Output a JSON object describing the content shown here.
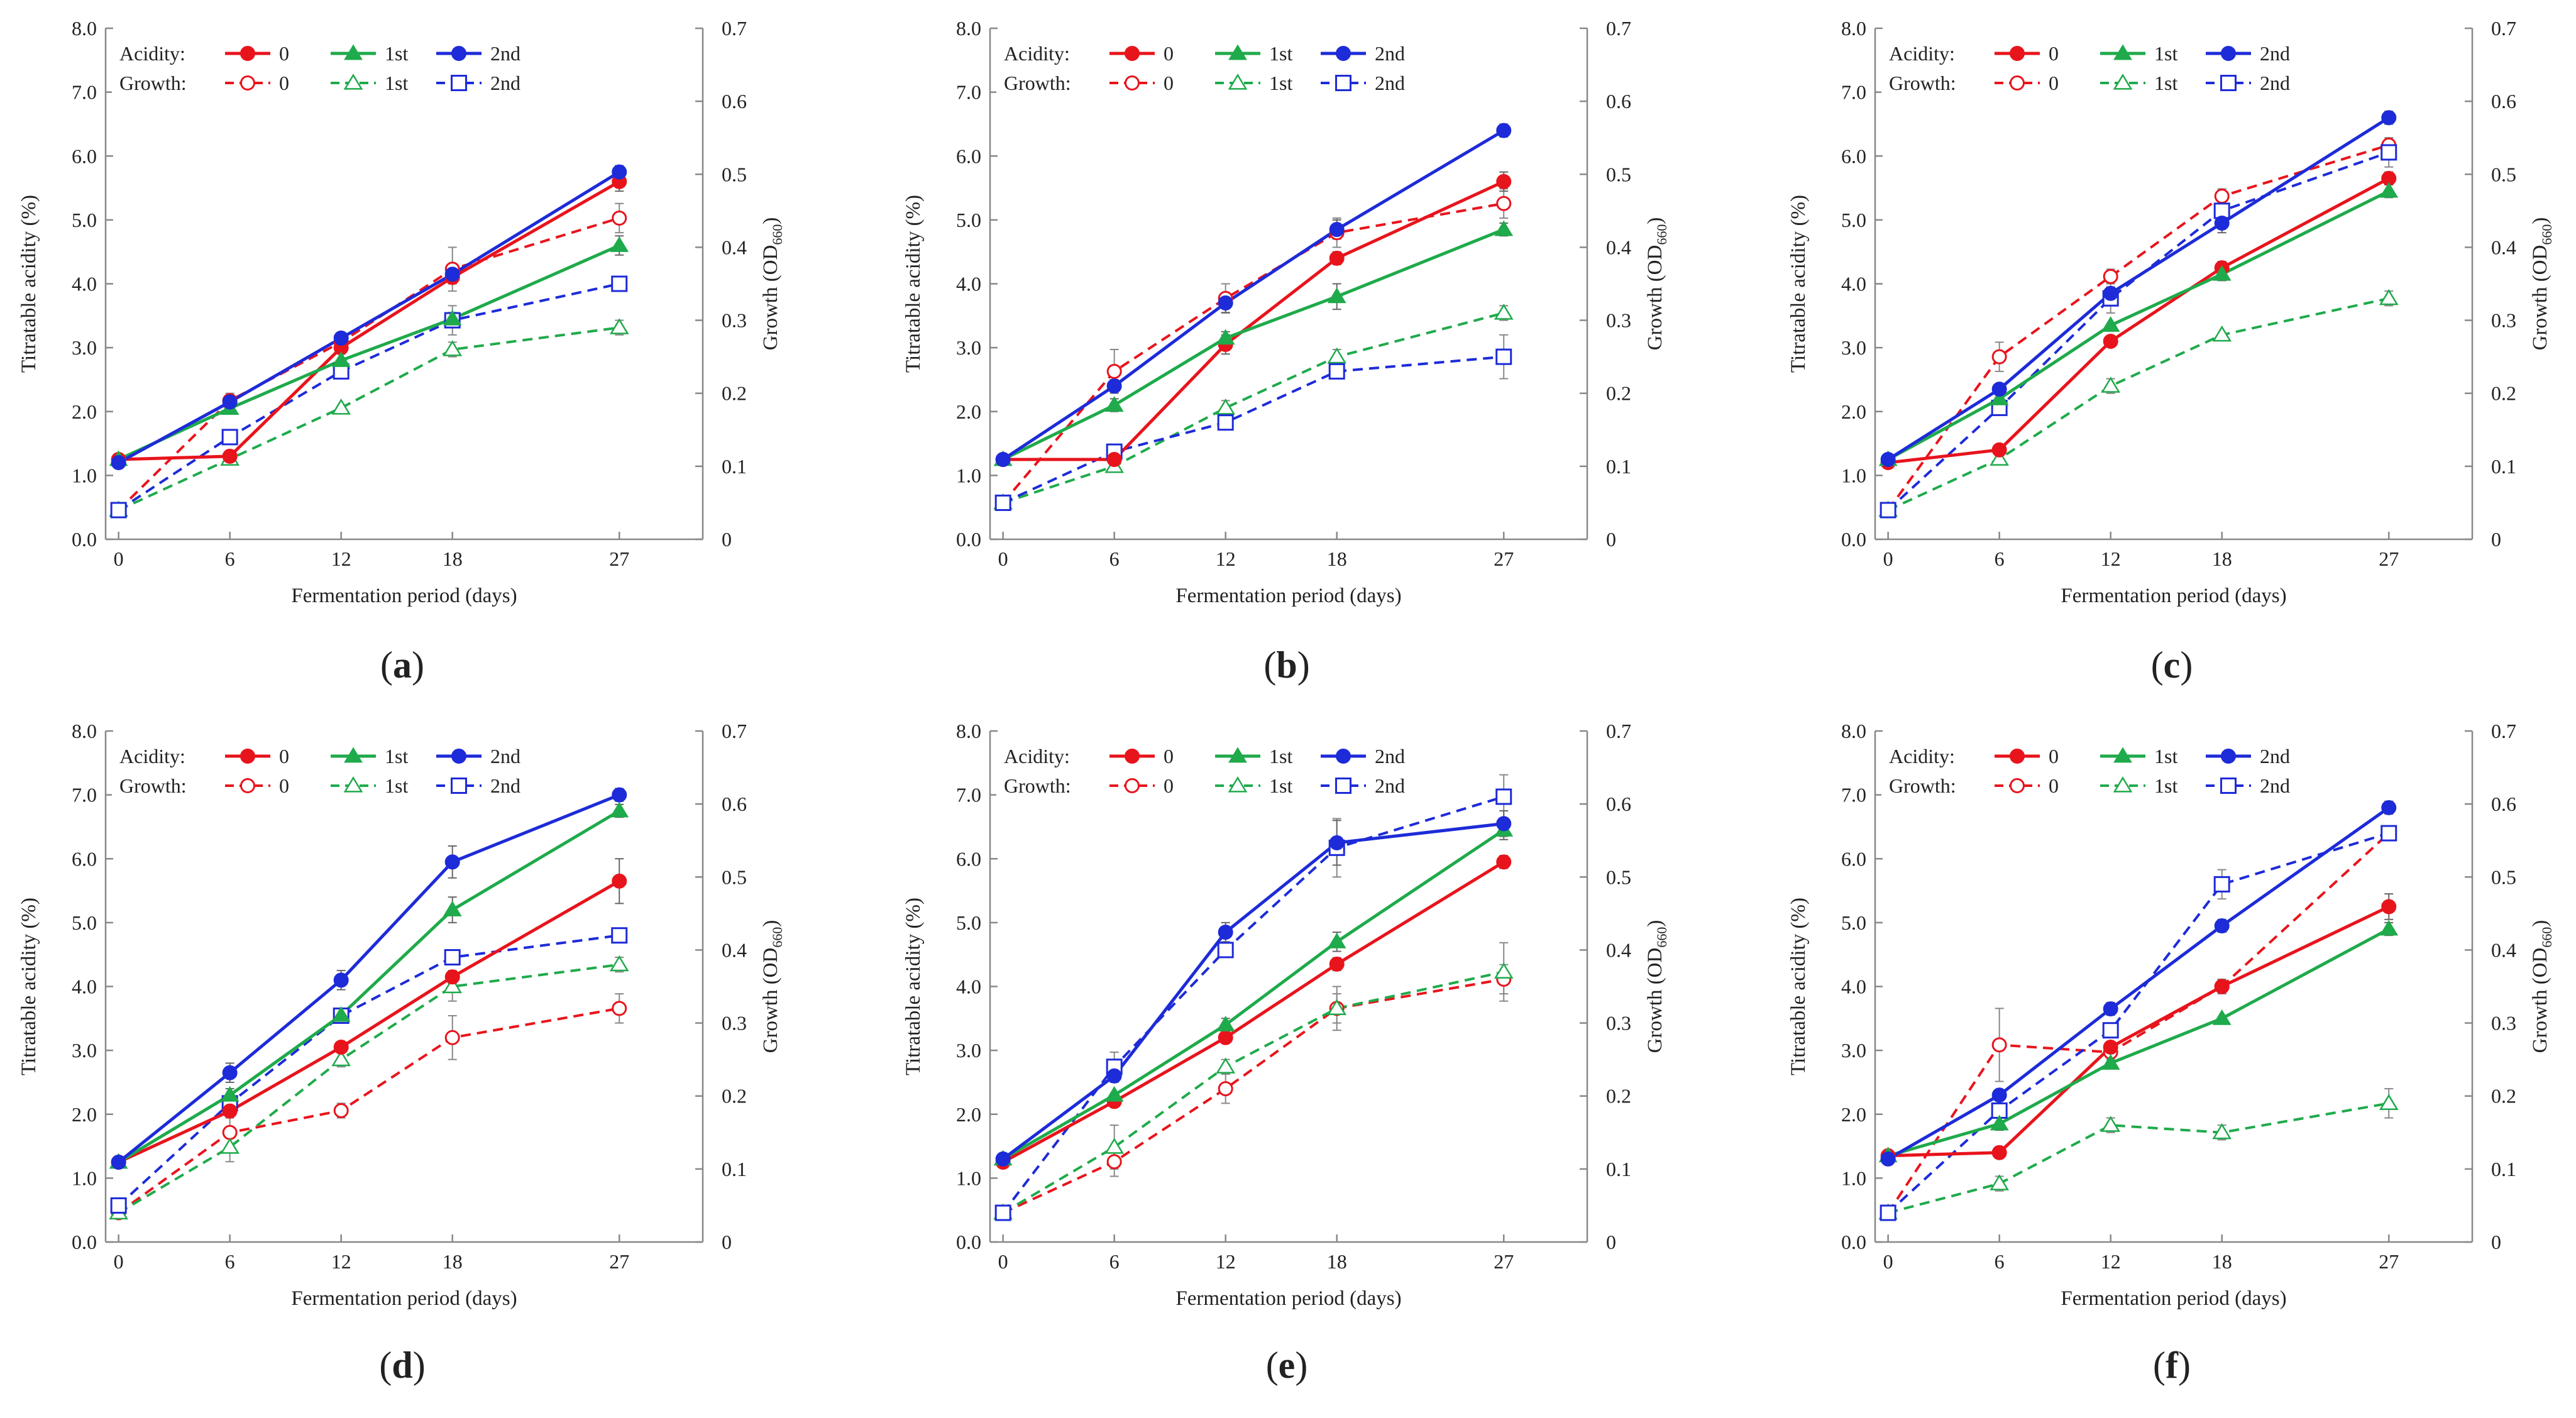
{
  "figure": {
    "colors": {
      "zero": "#e8141c",
      "first": "#1faa4b",
      "second": "#1d2bd8",
      "axis": "#888888",
      "text": "#222222"
    },
    "y_label": "Titratable acidity (%)",
    "y2_label_main": "Growth (OD",
    "y2_label_sub": "660",
    "y2_label_end": ")",
    "x_label": "Fermentation period (days)",
    "legend": {
      "acidity_label": "Acidity:",
      "growth_label": "Growth:",
      "zero": "0",
      "first": "1st",
      "second": "2nd"
    }
  },
  "chart_data": [
    {
      "type": "line",
      "panel": "(a)",
      "x": [
        0,
        6,
        12,
        18,
        27
      ],
      "x_ticks": [
        "0",
        "6",
        "12",
        "18",
        "27"
      ],
      "ylim": [
        0,
        8
      ],
      "y_ticks": [
        "0.0",
        "1.0",
        "2.0",
        "3.0",
        "4.0",
        "5.0",
        "6.0",
        "7.0",
        "8.0"
      ],
      "y2lim": [
        0,
        0.7
      ],
      "y2_ticks": [
        "0",
        "0.1",
        "0.2",
        "0.3",
        "0.4",
        "0.5",
        "0.6",
        "0.7"
      ],
      "acidity": [
        {
          "name": "0",
          "values": [
            1.25,
            1.3,
            3.0,
            4.1,
            5.6
          ],
          "err": [
            0,
            0,
            0.1,
            0.1,
            0.15
          ]
        },
        {
          "name": "1st",
          "values": [
            1.25,
            2.05,
            2.8,
            3.45,
            4.6
          ],
          "err": [
            0,
            0,
            0,
            0.1,
            0.15
          ]
        },
        {
          "name": "2nd",
          "values": [
            1.2,
            2.15,
            3.15,
            4.15,
            5.75
          ],
          "err": [
            0,
            0,
            0,
            0.1,
            0.1
          ]
        }
      ],
      "growth": [
        {
          "name": "0",
          "values": [
            0.04,
            0.19,
            0.27,
            0.37,
            0.44
          ],
          "err": [
            0,
            0.01,
            0.01,
            0.03,
            0.02
          ]
        },
        {
          "name": "1st",
          "values": [
            0.04,
            0.11,
            0.18,
            0.26,
            0.29
          ],
          "err": [
            0,
            0,
            0,
            0.01,
            0.01
          ]
        },
        {
          "name": "2nd",
          "values": [
            0.04,
            0.14,
            0.23,
            0.3,
            0.35
          ],
          "err": [
            0,
            0,
            0.01,
            0.02,
            0.01
          ]
        }
      ]
    },
    {
      "type": "line",
      "panel": "(b)",
      "x": [
        0,
        6,
        12,
        18,
        27
      ],
      "x_ticks": [
        "0",
        "6",
        "12",
        "18",
        "27"
      ],
      "ylim": [
        0,
        8
      ],
      "y_ticks": [
        "0.0",
        "1.0",
        "2.0",
        "3.0",
        "4.0",
        "5.0",
        "6.0",
        "7.0",
        "8.0"
      ],
      "y2lim": [
        0,
        0.7
      ],
      "y2_ticks": [
        "0",
        "0.1",
        "0.2",
        "0.3",
        "0.4",
        "0.5",
        "0.6",
        "0.7"
      ],
      "acidity": [
        {
          "name": "0",
          "values": [
            1.25,
            1.25,
            3.05,
            4.4,
            5.6
          ],
          "err": [
            0,
            0,
            0.15,
            0.1,
            0.15
          ]
        },
        {
          "name": "1st",
          "values": [
            1.25,
            2.1,
            3.15,
            3.8,
            4.85
          ],
          "err": [
            0,
            0.1,
            0.1,
            0.2,
            0.1
          ]
        },
        {
          "name": "2nd",
          "values": [
            1.25,
            2.4,
            3.7,
            4.85,
            6.4
          ],
          "err": [
            0,
            0.1,
            0.15,
            0.15,
            0.1
          ]
        }
      ],
      "growth": [
        {
          "name": "0",
          "values": [
            0.05,
            0.23,
            0.33,
            0.42,
            0.46
          ],
          "err": [
            0,
            0.03,
            0.02,
            0.02,
            0.02
          ]
        },
        {
          "name": "1st",
          "values": [
            0.05,
            0.1,
            0.18,
            0.25,
            0.31
          ],
          "err": [
            0,
            0,
            0.01,
            0.01,
            0.01
          ]
        },
        {
          "name": "2nd",
          "values": [
            0.05,
            0.12,
            0.16,
            0.23,
            0.25
          ],
          "err": [
            0,
            0.01,
            0.01,
            0.01,
            0.03
          ]
        }
      ]
    },
    {
      "type": "line",
      "panel": "(c)",
      "x": [
        0,
        6,
        12,
        18,
        27
      ],
      "x_ticks": [
        "0",
        "6",
        "12",
        "18",
        "27"
      ],
      "ylim": [
        0,
        8
      ],
      "y_ticks": [
        "0.0",
        "1.0",
        "2.0",
        "3.0",
        "4.0",
        "5.0",
        "6.0",
        "7.0",
        "8.0"
      ],
      "y2lim": [
        0,
        0.7
      ],
      "y2_ticks": [
        "0",
        "0.1",
        "0.2",
        "0.3",
        "0.4",
        "0.5",
        "0.6",
        "0.7"
      ],
      "acidity": [
        {
          "name": "0",
          "values": [
            1.2,
            1.4,
            3.1,
            4.25,
            5.65
          ],
          "err": [
            0,
            0,
            0,
            0.1,
            0.1
          ]
        },
        {
          "name": "1st",
          "values": [
            1.25,
            2.2,
            3.35,
            4.15,
            5.45
          ],
          "err": [
            0,
            0,
            0,
            0.1,
            0.1
          ]
        },
        {
          "name": "2nd",
          "values": [
            1.25,
            2.35,
            3.85,
            4.95,
            6.6
          ],
          "err": [
            0,
            0,
            0.1,
            0.15,
            0.1
          ]
        }
      ],
      "growth": [
        {
          "name": "0",
          "values": [
            0.04,
            0.25,
            0.36,
            0.47,
            0.54
          ],
          "err": [
            0,
            0.02,
            0.01,
            0.01,
            0.01
          ]
        },
        {
          "name": "1st",
          "values": [
            0.04,
            0.11,
            0.21,
            0.28,
            0.33
          ],
          "err": [
            0,
            0,
            0.01,
            0,
            0.01
          ]
        },
        {
          "name": "2nd",
          "values": [
            0.04,
            0.18,
            0.33,
            0.45,
            0.53
          ],
          "err": [
            0,
            0.01,
            0.02,
            0.02,
            0.02
          ]
        }
      ]
    },
    {
      "type": "line",
      "panel": "(d)",
      "x": [
        0,
        6,
        12,
        18,
        27
      ],
      "x_ticks": [
        "0",
        "6",
        "12",
        "18",
        "27"
      ],
      "ylim": [
        0,
        8
      ],
      "y_ticks": [
        "0.0",
        "1.0",
        "2.0",
        "3.0",
        "4.0",
        "5.0",
        "6.0",
        "7.0",
        "8.0"
      ],
      "y2lim": [
        0,
        0.7
      ],
      "y2_ticks": [
        "0",
        "0.1",
        "0.2",
        "0.3",
        "0.4",
        "0.5",
        "0.6",
        "0.7"
      ],
      "acidity": [
        {
          "name": "0",
          "values": [
            1.25,
            2.05,
            3.05,
            4.15,
            5.65
          ],
          "err": [
            0,
            0,
            0,
            0.1,
            0.35
          ]
        },
        {
          "name": "1st",
          "values": [
            1.25,
            2.3,
            3.55,
            5.2,
            6.75
          ],
          "err": [
            0,
            0.1,
            0.1,
            0.2,
            0.1
          ]
        },
        {
          "name": "2nd",
          "values": [
            1.25,
            2.65,
            4.1,
            5.95,
            7.0
          ],
          "err": [
            0,
            0.15,
            0.15,
            0.25,
            0.1
          ]
        }
      ],
      "growth": [
        {
          "name": "0",
          "values": [
            0.04,
            0.15,
            0.18,
            0.28,
            0.32
          ],
          "err": [
            0,
            0.02,
            0.01,
            0.03,
            0.02
          ]
        },
        {
          "name": "1st",
          "values": [
            0.04,
            0.13,
            0.25,
            0.35,
            0.38
          ],
          "err": [
            0,
            0.02,
            0.01,
            0.02,
            0.01
          ]
        },
        {
          "name": "2nd",
          "values": [
            0.05,
            0.19,
            0.31,
            0.39,
            0.42
          ],
          "err": [
            0,
            0.01,
            0.01,
            0.01,
            0.01
          ]
        }
      ]
    },
    {
      "type": "line",
      "panel": "(e)",
      "x": [
        0,
        6,
        12,
        18,
        27
      ],
      "x_ticks": [
        "0",
        "6",
        "12",
        "18",
        "27"
      ],
      "ylim": [
        0,
        8
      ],
      "y_ticks": [
        "0.0",
        "1.0",
        "2.0",
        "3.0",
        "4.0",
        "5.0",
        "6.0",
        "7.0",
        "8.0"
      ],
      "y2lim": [
        0,
        0.7
      ],
      "y2_ticks": [
        "0",
        "0.1",
        "0.2",
        "0.3",
        "0.4",
        "0.5",
        "0.6",
        "0.7"
      ],
      "acidity": [
        {
          "name": "0",
          "values": [
            1.25,
            2.2,
            3.2,
            4.35,
            5.95
          ],
          "err": [
            0,
            0,
            0,
            0.1,
            0.1
          ]
        },
        {
          "name": "1st",
          "values": [
            1.3,
            2.3,
            3.4,
            4.7,
            6.45
          ],
          "err": [
            0,
            0,
            0.1,
            0.15,
            0.15
          ]
        },
        {
          "name": "2nd",
          "values": [
            1.3,
            2.6,
            4.85,
            6.25,
            6.55
          ],
          "err": [
            0,
            0.1,
            0.15,
            0.35,
            0.2
          ]
        }
      ],
      "growth": [
        {
          "name": "0",
          "values": [
            0.04,
            0.11,
            0.21,
            0.32,
            0.36
          ],
          "err": [
            0,
            0.02,
            0.02,
            0.02,
            0.02
          ]
        },
        {
          "name": "1st",
          "values": [
            0.04,
            0.13,
            0.24,
            0.32,
            0.37
          ],
          "err": [
            0,
            0.03,
            0.01,
            0.03,
            0.04
          ]
        },
        {
          "name": "2nd",
          "values": [
            0.04,
            0.24,
            0.4,
            0.54,
            0.61
          ],
          "err": [
            0,
            0.02,
            0.01,
            0.04,
            0.03
          ]
        }
      ]
    },
    {
      "type": "line",
      "panel": "(f)",
      "x": [
        0,
        6,
        12,
        18,
        27
      ],
      "x_ticks": [
        "0",
        "6",
        "12",
        "18",
        "27"
      ],
      "ylim": [
        0,
        8
      ],
      "y_ticks": [
        "0.0",
        "1.0",
        "2.0",
        "3.0",
        "4.0",
        "5.0",
        "6.0",
        "7.0",
        "8.0"
      ],
      "y2lim": [
        0,
        0.7
      ],
      "y2_ticks": [
        "0",
        "0.1",
        "0.2",
        "0.3",
        "0.4",
        "0.5",
        "0.6",
        "0.7"
      ],
      "acidity": [
        {
          "name": "0",
          "values": [
            1.35,
            1.4,
            3.05,
            4.0,
            5.25
          ],
          "err": [
            0,
            0,
            0,
            0.1,
            0.2
          ]
        },
        {
          "name": "1st",
          "values": [
            1.35,
            1.85,
            2.8,
            3.5,
            4.9
          ],
          "err": [
            0,
            0.1,
            0,
            0,
            0.1
          ]
        },
        {
          "name": "2nd",
          "values": [
            1.3,
            2.3,
            3.65,
            4.95,
            6.8
          ],
          "err": [
            0,
            0,
            0.1,
            0.1,
            0.1
          ]
        }
      ],
      "growth": [
        {
          "name": "0",
          "values": [
            0.04,
            0.27,
            0.26,
            0.35,
            0.56
          ],
          "err": [
            0,
            0.05,
            0.01,
            0.01,
            0.01
          ]
        },
        {
          "name": "1st",
          "values": [
            0.04,
            0.08,
            0.16,
            0.15,
            0.19
          ],
          "err": [
            0,
            0.01,
            0.01,
            0.01,
            0.02
          ]
        },
        {
          "name": "2nd",
          "values": [
            0.04,
            0.18,
            0.29,
            0.49,
            0.56
          ],
          "err": [
            0,
            0.01,
            0.01,
            0.02,
            0.01
          ]
        }
      ]
    }
  ]
}
